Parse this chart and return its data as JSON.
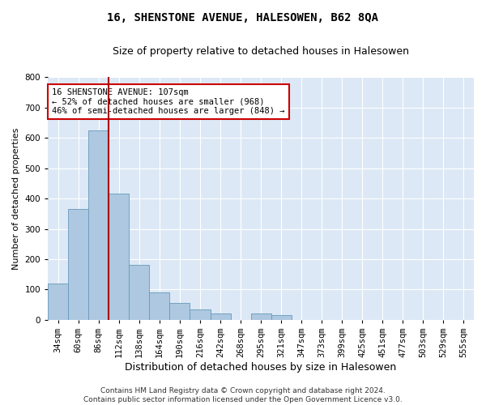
{
  "title": "16, SHENSTONE AVENUE, HALESOWEN, B62 8QA",
  "subtitle": "Size of property relative to detached houses in Halesowen",
  "xlabel": "Distribution of detached houses by size in Halesowen",
  "ylabel": "Number of detached properties",
  "categories": [
    "34sqm",
    "60sqm",
    "86sqm",
    "112sqm",
    "138sqm",
    "164sqm",
    "190sqm",
    "216sqm",
    "242sqm",
    "268sqm",
    "295sqm",
    "321sqm",
    "347sqm",
    "373sqm",
    "399sqm",
    "425sqm",
    "451sqm",
    "477sqm",
    "503sqm",
    "529sqm",
    "555sqm"
  ],
  "values": [
    120,
    365,
    625,
    415,
    180,
    90,
    55,
    35,
    20,
    0,
    20,
    15,
    0,
    0,
    0,
    0,
    0,
    0,
    0,
    0,
    0
  ],
  "bar_color": "#adc8e0",
  "bar_edgecolor": "#6699bb",
  "vline_index": 3,
  "vline_color": "#aa0000",
  "annotation_text": "16 SHENSTONE AVENUE: 107sqm\n← 52% of detached houses are smaller (968)\n46% of semi-detached houses are larger (848) →",
  "annotation_box_edgecolor": "#cc0000",
  "annotation_box_facecolor": "white",
  "ylim": [
    0,
    800
  ],
  "yticks": [
    0,
    100,
    200,
    300,
    400,
    500,
    600,
    700,
    800
  ],
  "background_color": "#dce8f5",
  "grid_color": "white",
  "footer": "Contains HM Land Registry data © Crown copyright and database right 2024.\nContains public sector information licensed under the Open Government Licence v3.0.",
  "title_fontsize": 10,
  "subtitle_fontsize": 9,
  "ylabel_fontsize": 8,
  "xlabel_fontsize": 9,
  "tick_fontsize": 7.5,
  "annotation_fontsize": 7.5,
  "footer_fontsize": 6.5
}
